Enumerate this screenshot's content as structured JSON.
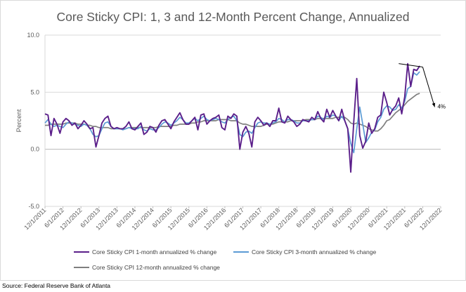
{
  "chart_data": {
    "type": "line",
    "title": "Core Sticky CPI: 1, 3 and 12-Month Percent Change, Annualized",
    "ylabel": "Percent",
    "xlabel": "",
    "ylim": [
      -5.0,
      10.0
    ],
    "yticks": [
      "-5.0",
      "0.0",
      "5.0",
      "10.0"
    ],
    "x_tick_labels": [
      "12/1/2011",
      "6/1/2012",
      "12/1/2012",
      "6/1/2013",
      "12/1/2013",
      "6/1/2014",
      "12/1/2014",
      "6/1/2015",
      "12/1/2015",
      "6/1/2016",
      "12/1/2016",
      "6/1/2017",
      "12/1/2017",
      "6/1/2018",
      "12/1/2018",
      "6/1/2019",
      "12/1/2019",
      "6/1/2020",
      "12/1/2020",
      "6/1/2021",
      "12/1/2021",
      "6/1/2022",
      "12/1/2022"
    ],
    "x_start": "12/1/2011",
    "x_end": "12/1/2022",
    "grid": true,
    "legend_placement": "bottom",
    "series": [
      {
        "name": "Core Sticky CPI 1-month annualized % change",
        "color": "#5b1f8a",
        "values": [
          3.1,
          3.0,
          1.2,
          2.7,
          2.2,
          1.4,
          2.4,
          2.7,
          2.5,
          2.1,
          2.3,
          1.8,
          2.1,
          2.5,
          2.2,
          1.8,
          1.9,
          0.2,
          1.2,
          2.3,
          2.7,
          2.9,
          2.0,
          1.8,
          1.9,
          1.8,
          1.8,
          2.0,
          2.4,
          1.8,
          1.7,
          2.0,
          2.3,
          1.3,
          1.5,
          2.0,
          1.9,
          1.5,
          2.1,
          2.5,
          2.6,
          2.2,
          1.8,
          2.4,
          2.8,
          3.2,
          2.6,
          2.2,
          2.2,
          2.5,
          2.8,
          1.7,
          3.0,
          3.1,
          2.2,
          2.5,
          2.7,
          2.8,
          3.0,
          1.9,
          1.7,
          2.9,
          2.7,
          3.1,
          2.9,
          0.0,
          1.5,
          2.0,
          1.4,
          0.2,
          2.4,
          2.8,
          2.5,
          2.1,
          2.3,
          2.0,
          2.5,
          2.5,
          3.6,
          2.4,
          2.3,
          2.9,
          2.6,
          2.4,
          2.0,
          2.2,
          2.6,
          2.5,
          2.4,
          2.8,
          2.6,
          3.3,
          2.7,
          2.4,
          3.5,
          2.8,
          3.4,
          2.9,
          2.5,
          3.5,
          2.5,
          1.8,
          -2.0,
          2.4,
          6.2,
          1.2,
          0.1,
          0.7,
          2.3,
          1.4,
          1.8,
          2.8,
          3.0,
          5.0,
          4.1,
          3.0,
          3.5,
          3.8,
          4.5,
          3.1,
          4.6,
          7.5,
          5.5,
          7.0,
          6.9,
          7.3
        ]
      },
      {
        "name": "Core Sticky CPI 3-month annualized % change",
        "color": "#5b9bd5",
        "values": [
          2.3,
          2.6,
          2.2,
          2.0,
          2.1,
          2.0,
          1.9,
          2.2,
          2.4,
          2.3,
          2.2,
          2.1,
          2.0,
          2.2,
          2.1,
          1.8,
          1.3,
          1.1,
          1.2,
          1.8,
          2.3,
          2.4,
          2.0,
          1.8,
          1.8,
          1.8,
          1.7,
          1.8,
          1.9,
          1.8,
          1.8,
          1.8,
          2.0,
          1.7,
          1.6,
          1.8,
          1.7,
          1.7,
          1.9,
          2.2,
          2.4,
          2.3,
          2.1,
          2.3,
          2.5,
          2.8,
          2.6,
          2.3,
          2.3,
          2.5,
          2.7,
          2.5,
          2.7,
          2.9,
          2.6,
          2.5,
          2.6,
          2.7,
          2.6,
          2.4,
          2.3,
          2.6,
          2.8,
          2.9,
          2.5,
          1.3,
          1.1,
          1.5,
          1.6,
          1.4,
          1.9,
          2.3,
          2.4,
          2.3,
          2.3,
          2.2,
          2.3,
          2.4,
          2.7,
          2.6,
          2.4,
          2.6,
          2.6,
          2.5,
          2.3,
          2.3,
          2.5,
          2.5,
          2.5,
          2.6,
          2.6,
          2.9,
          2.8,
          2.6,
          2.9,
          2.8,
          3.0,
          2.9,
          2.5,
          2.9,
          2.5,
          1.8,
          0.5,
          -0.3,
          1.8,
          3.7,
          2.2,
          0.6,
          1.0,
          1.5,
          1.7,
          2.4,
          2.8,
          3.5,
          3.8,
          3.7,
          3.4,
          3.5,
          3.9,
          3.6,
          4.2,
          5.3,
          5.5,
          6.7,
          6.5,
          6.8
        ]
      },
      {
        "name": "Core Sticky CPI 12-month annualized % change",
        "color": "#7f7f7f",
        "values": [
          2.1,
          2.1,
          2.2,
          2.2,
          2.2,
          2.2,
          2.2,
          2.3,
          2.3,
          2.3,
          2.3,
          2.2,
          2.2,
          2.2,
          2.1,
          2.1,
          2.0,
          2.0,
          1.9,
          1.9,
          1.9,
          1.9,
          1.8,
          1.8,
          1.8,
          1.8,
          1.8,
          1.8,
          1.9,
          1.9,
          1.9,
          1.9,
          1.9,
          1.9,
          1.9,
          1.9,
          1.9,
          1.9,
          2.0,
          2.0,
          2.0,
          2.0,
          2.0,
          2.1,
          2.1,
          2.2,
          2.2,
          2.2,
          2.2,
          2.3,
          2.3,
          2.4,
          2.4,
          2.5,
          2.5,
          2.5,
          2.5,
          2.5,
          2.6,
          2.6,
          2.6,
          2.6,
          2.5,
          2.5,
          2.5,
          2.3,
          2.2,
          2.2,
          2.1,
          2.0,
          2.0,
          2.0,
          2.0,
          2.1,
          2.2,
          2.2,
          2.2,
          2.3,
          2.4,
          2.4,
          2.4,
          2.4,
          2.5,
          2.5,
          2.5,
          2.5,
          2.5,
          2.6,
          2.6,
          2.6,
          2.6,
          2.7,
          2.7,
          2.7,
          2.7,
          2.7,
          2.7,
          2.8,
          2.8,
          2.8,
          2.8,
          2.6,
          2.3,
          2.2,
          2.3,
          2.2,
          2.1,
          2.0,
          1.8,
          1.7,
          1.6,
          1.6,
          1.8,
          2.1,
          2.5,
          2.6,
          2.9,
          3.2,
          3.4,
          3.6,
          3.9,
          4.2,
          4.4,
          4.6,
          4.8,
          4.9
        ]
      }
    ],
    "annotation": {
      "text": "4%",
      "line_from": {
        "x": "10/1/2021",
        "y": 7.5
      },
      "line_to": {
        "x": "6/1/2022",
        "y": 7.2
      },
      "arrow_to": {
        "x": "10/1/2022",
        "y": 3.7
      }
    }
  },
  "source": "Source: Federal Reserve Bank of Atlanta"
}
